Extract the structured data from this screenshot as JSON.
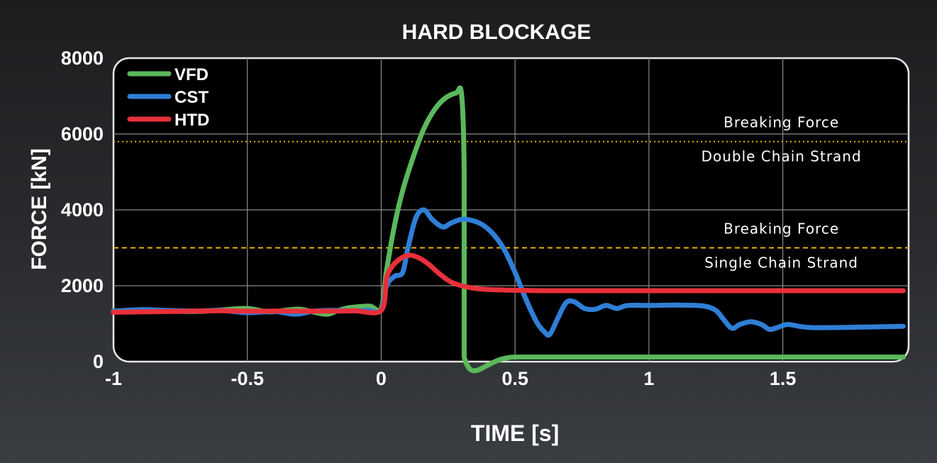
{
  "chart_data": {
    "type": "line",
    "title": "HARD BLOCKAGE",
    "xlabel": "TIME [s]",
    "ylabel": "FORCE [kN]",
    "xlim": [
      -1,
      1.97
    ],
    "ylim": [
      0,
      8000
    ],
    "x_ticks": [
      -1,
      -0.5,
      0,
      0.5,
      1,
      1.5
    ],
    "x_tick_labels": [
      "-1",
      "-0.5",
      "0",
      "0.5",
      "1",
      "1.5"
    ],
    "y_ticks": [
      0,
      2000,
      4000,
      6000,
      8000
    ],
    "y_tick_labels": [
      "0",
      "2000",
      "4000",
      "6000",
      "8000"
    ],
    "grid": "horizontal",
    "legend_position": "top-left",
    "series": [
      {
        "name": "VFD",
        "color": "#5cb85c",
        "x": [
          -1,
          -0.85,
          -0.7,
          -0.6,
          -0.5,
          -0.42,
          -0.35,
          -0.3,
          -0.25,
          -0.2,
          -0.16,
          -0.12,
          -0.08,
          -0.04,
          0,
          0.02,
          0.05,
          0.08,
          0.12,
          0.16,
          0.2,
          0.24,
          0.28,
          0.3,
          0.31,
          0.31,
          0.5,
          1.0,
          1.5,
          1.95
        ],
        "y": [
          1330,
          1340,
          1320,
          1360,
          1400,
          1310,
          1360,
          1380,
          1300,
          1250,
          1350,
          1420,
          1450,
          1460,
          1400,
          2400,
          3600,
          4500,
          5400,
          6150,
          6650,
          6950,
          7080,
          7050,
          5000,
          120,
          120,
          120,
          120,
          120
        ]
      },
      {
        "name": "CST",
        "color": "#2f7fd6",
        "x": [
          -1,
          -0.9,
          -0.8,
          -0.7,
          -0.6,
          -0.5,
          -0.4,
          -0.32,
          -0.25,
          -0.18,
          -0.1,
          -0.05,
          0,
          0.02,
          0.05,
          0.08,
          0.1,
          0.13,
          0.16,
          0.19,
          0.23,
          0.26,
          0.3,
          0.34,
          0.38,
          0.42,
          0.46,
          0.5,
          0.54,
          0.58,
          0.61,
          0.63,
          0.66,
          0.69,
          0.72,
          0.76,
          0.8,
          0.84,
          0.88,
          0.92,
          1.0,
          1.1,
          1.2,
          1.25,
          1.28,
          1.31,
          1.34,
          1.38,
          1.42,
          1.45,
          1.48,
          1.52,
          1.6,
          1.8,
          1.95
        ],
        "y": [
          1330,
          1370,
          1350,
          1330,
          1350,
          1290,
          1320,
          1250,
          1330,
          1350,
          1340,
          1350,
          1350,
          2000,
          2250,
          2350,
          3000,
          3800,
          4000,
          3750,
          3550,
          3650,
          3750,
          3720,
          3600,
          3350,
          2950,
          2350,
          1650,
          1050,
          780,
          720,
          1150,
          1550,
          1580,
          1400,
          1380,
          1480,
          1400,
          1480,
          1480,
          1490,
          1470,
          1350,
          1100,
          880,
          980,
          1050,
          980,
          850,
          900,
          980,
          900,
          910,
          930
        ]
      },
      {
        "name": "HTD",
        "color": "#e8303a",
        "x": [
          -1,
          -0.9,
          -0.8,
          -0.7,
          -0.6,
          -0.5,
          -0.4,
          -0.3,
          -0.2,
          -0.1,
          0,
          0.02,
          0.04,
          0.06,
          0.08,
          0.1,
          0.12,
          0.15,
          0.18,
          0.22,
          0.26,
          0.3,
          0.35,
          0.4,
          0.45,
          0.5,
          0.6,
          0.8,
          1.0,
          1.2,
          1.5,
          1.8,
          1.95
        ],
        "y": [
          1300,
          1310,
          1320,
          1330,
          1340,
          1330,
          1330,
          1330,
          1330,
          1340,
          1350,
          2200,
          2500,
          2650,
          2750,
          2800,
          2790,
          2700,
          2550,
          2300,
          2100,
          2000,
          1930,
          1900,
          1890,
          1880,
          1870,
          1870,
          1870,
          1870,
          1870,
          1870,
          1870
        ]
      }
    ],
    "reference_lines": [
      {
        "y": 5800,
        "color": "#e8b400",
        "style": "dotted",
        "label_top": "Breaking Force",
        "label_bottom": "Double Chain Strand"
      },
      {
        "y": 3000,
        "color": "#e8b400",
        "style": "dashed",
        "label_top": "Breaking Force",
        "label_bottom": "Single Chain Strand"
      }
    ]
  }
}
